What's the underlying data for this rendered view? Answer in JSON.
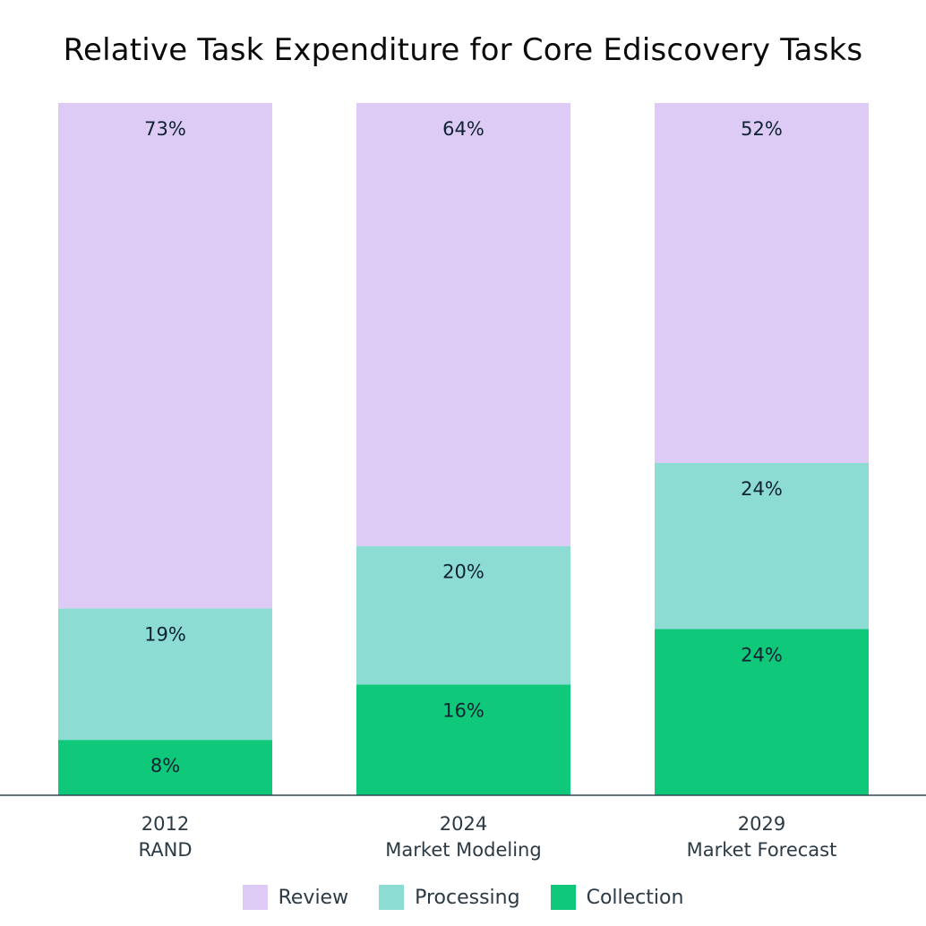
{
  "chart_data": {
    "type": "bar",
    "stacked": true,
    "title": "Relative Task Expenditure for Core Ediscovery Tasks",
    "categories": [
      {
        "year": "2012",
        "source": "RAND"
      },
      {
        "year": "2024",
        "source": "Market Modeling"
      },
      {
        "year": "2029",
        "source": "Market Forecast"
      }
    ],
    "series": [
      {
        "name": "Collection",
        "color": "#10c87a",
        "values": [
          8,
          16,
          24
        ],
        "labels": [
          "8%",
          "16%",
          "24%"
        ]
      },
      {
        "name": "Processing",
        "color": "#8ddcd4",
        "values": [
          19,
          20,
          24
        ],
        "labels": [
          "19%",
          "20%",
          "24%"
        ]
      },
      {
        "name": "Review",
        "color": "#ddcbf5",
        "values": [
          73,
          64,
          52
        ],
        "labels": [
          "73%",
          "64%",
          "52%"
        ]
      }
    ],
    "ylim": [
      0,
      100
    ],
    "legend": {
      "position": "bottom",
      "order": [
        "Review",
        "Processing",
        "Collection"
      ]
    },
    "xlabel": "",
    "ylabel": ""
  }
}
